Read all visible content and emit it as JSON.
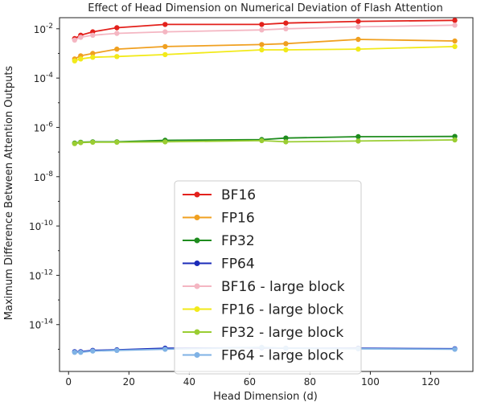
{
  "chart_data": {
    "type": "line",
    "title": "Effect of Head Dimension on Numerical Deviation of Flash Attention",
    "xlabel": "Head Dimension (d)",
    "ylabel": "Maximum Difference Between Attention Outputs",
    "xlim": [
      -3,
      134
    ],
    "x_ticks": [
      0,
      20,
      40,
      60,
      80,
      100,
      120
    ],
    "y_scale": "log",
    "ylim_log10": [
      -15.9,
      -1.55
    ],
    "y_ticks": [
      {
        "exp": -2,
        "base": "10",
        "sup": "-2"
      },
      {
        "exp": -4,
        "base": "10",
        "sup": "-4"
      },
      {
        "exp": -6,
        "base": "10",
        "sup": "-6"
      },
      {
        "exp": -8,
        "base": "10",
        "sup": "-8"
      },
      {
        "exp": -10,
        "base": "10",
        "sup": "-10"
      },
      {
        "exp": -12,
        "base": "10",
        "sup": "-12"
      },
      {
        "exp": -14,
        "base": "10",
        "sup": "-14"
      }
    ],
    "x": [
      2,
      4,
      8,
      16,
      32,
      64,
      72,
      96,
      128
    ],
    "legend_position": "lower-center",
    "series": [
      {
        "name": "BF16",
        "color": "#e3211c",
        "values": [
          0.004,
          0.0055,
          0.0075,
          0.011,
          0.015,
          0.015,
          0.017,
          0.02,
          0.022
        ]
      },
      {
        "name": "FP16",
        "color": "#f0a020",
        "values": [
          0.0006,
          0.0008,
          0.001,
          0.0015,
          0.0019,
          0.0023,
          0.0025,
          0.0037,
          0.0032
        ]
      },
      {
        "name": "FP32",
        "color": "#1e8c1e",
        "values": [
          2.3e-07,
          2.5e-07,
          2.6e-07,
          2.6e-07,
          3e-07,
          3.2e-07,
          3.7e-07,
          4.2e-07,
          4.3e-07
        ]
      },
      {
        "name": "FP64",
        "color": "#1b2bb8",
        "values": [
          8e-16,
          8e-16,
          9e-16,
          9.5e-16,
          1.1e-15,
          1.15e-15,
          1.1e-15,
          1.1e-15,
          1.05e-15
        ]
      },
      {
        "name": "BF16 - large block",
        "color": "#f4b6c2",
        "values": [
          0.0035,
          0.0045,
          0.0055,
          0.0065,
          0.0075,
          0.009,
          0.01,
          0.012,
          0.014
        ]
      },
      {
        "name": "FP16 - large block",
        "color": "#f2ea1a",
        "values": [
          0.0005,
          0.0006,
          0.0007,
          0.00075,
          0.0009,
          0.0014,
          0.0014,
          0.0015,
          0.0019
        ]
      },
      {
        "name": "FP32 - large block",
        "color": "#9acd32",
        "values": [
          2.2e-07,
          2.4e-07,
          2.5e-07,
          2.5e-07,
          2.6e-07,
          2.9e-07,
          2.6e-07,
          2.8e-07,
          3.1e-07
        ]
      },
      {
        "name": "FP64 - large block",
        "color": "#7fb2e5",
        "values": [
          7.5e-16,
          7.5e-16,
          8.5e-16,
          9e-16,
          1e-15,
          1.2e-15,
          1.1e-15,
          1.05e-15,
          1e-15
        ]
      }
    ]
  }
}
